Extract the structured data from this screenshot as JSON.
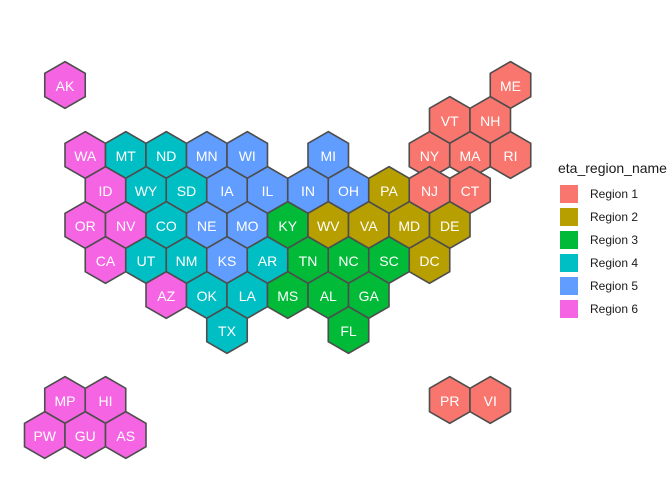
{
  "legend": {
    "title": "eta_region_name",
    "items": [
      {
        "label": "Region 1",
        "color": "#F8766D"
      },
      {
        "label": "Region 2",
        "color": "#B79F00"
      },
      {
        "label": "Region 3",
        "color": "#00BA38"
      },
      {
        "label": "Region 4",
        "color": "#00BFC4"
      },
      {
        "label": "Region 5",
        "color": "#619CFF"
      },
      {
        "label": "Region 6",
        "color": "#F564E3"
      }
    ]
  },
  "states": [
    {
      "abbr": "AK",
      "region": "Region 6",
      "row": 0,
      "col": 1
    },
    {
      "abbr": "ME",
      "region": "Region 1",
      "row": 0,
      "col": 12
    },
    {
      "abbr": "VT",
      "region": "Region 1",
      "row": 1,
      "col": 10.5
    },
    {
      "abbr": "NH",
      "region": "Region 1",
      "row": 1,
      "col": 11.5
    },
    {
      "abbr": "WA",
      "region": "Region 6",
      "row": 2,
      "col": 1.5
    },
    {
      "abbr": "MT",
      "region": "Region 4",
      "row": 2,
      "col": 2.5
    },
    {
      "abbr": "ND",
      "region": "Region 4",
      "row": 2,
      "col": 3.5
    },
    {
      "abbr": "MN",
      "region": "Region 5",
      "row": 2,
      "col": 4.5
    },
    {
      "abbr": "WI",
      "region": "Region 5",
      "row": 2,
      "col": 5.5
    },
    {
      "abbr": "MI",
      "region": "Region 5",
      "row": 2,
      "col": 7.5
    },
    {
      "abbr": "NY",
      "region": "Region 1",
      "row": 2,
      "col": 10
    },
    {
      "abbr": "MA",
      "region": "Region 1",
      "row": 2,
      "col": 11
    },
    {
      "abbr": "RI",
      "region": "Region 1",
      "row": 2,
      "col": 12
    },
    {
      "abbr": "ID",
      "region": "Region 6",
      "row": 3,
      "col": 2
    },
    {
      "abbr": "WY",
      "region": "Region 4",
      "row": 3,
      "col": 3
    },
    {
      "abbr": "SD",
      "region": "Region 4",
      "row": 3,
      "col": 4
    },
    {
      "abbr": "IA",
      "region": "Region 5",
      "row": 3,
      "col": 5
    },
    {
      "abbr": "IL",
      "region": "Region 5",
      "row": 3,
      "col": 6
    },
    {
      "abbr": "IN",
      "region": "Region 5",
      "row": 3,
      "col": 7
    },
    {
      "abbr": "OH",
      "region": "Region 5",
      "row": 3,
      "col": 8
    },
    {
      "abbr": "PA",
      "region": "Region 2",
      "row": 3,
      "col": 9
    },
    {
      "abbr": "NJ",
      "region": "Region 1",
      "row": 3,
      "col": 10
    },
    {
      "abbr": "CT",
      "region": "Region 1",
      "row": 3,
      "col": 11
    },
    {
      "abbr": "OR",
      "region": "Region 6",
      "row": 4,
      "col": 1.5
    },
    {
      "abbr": "NV",
      "region": "Region 6",
      "row": 4,
      "col": 2.5
    },
    {
      "abbr": "CO",
      "region": "Region 4",
      "row": 4,
      "col": 3.5
    },
    {
      "abbr": "NE",
      "region": "Region 5",
      "row": 4,
      "col": 4.5
    },
    {
      "abbr": "MO",
      "region": "Region 5",
      "row": 4,
      "col": 5.5
    },
    {
      "abbr": "KY",
      "region": "Region 3",
      "row": 4,
      "col": 6.5
    },
    {
      "abbr": "WV",
      "region": "Region 2",
      "row": 4,
      "col": 7.5
    },
    {
      "abbr": "VA",
      "region": "Region 2",
      "row": 4,
      "col": 8.5
    },
    {
      "abbr": "MD",
      "region": "Region 2",
      "row": 4,
      "col": 9.5
    },
    {
      "abbr": "DE",
      "region": "Region 2",
      "row": 4,
      "col": 10.5
    },
    {
      "abbr": "CA",
      "region": "Region 6",
      "row": 5,
      "col": 2
    },
    {
      "abbr": "UT",
      "region": "Region 4",
      "row": 5,
      "col": 3
    },
    {
      "abbr": "NM",
      "region": "Region 4",
      "row": 5,
      "col": 4
    },
    {
      "abbr": "KS",
      "region": "Region 5",
      "row": 5,
      "col": 5
    },
    {
      "abbr": "AR",
      "region": "Region 4",
      "row": 5,
      "col": 6
    },
    {
      "abbr": "TN",
      "region": "Region 3",
      "row": 5,
      "col": 7
    },
    {
      "abbr": "NC",
      "region": "Region 3",
      "row": 5,
      "col": 8
    },
    {
      "abbr": "SC",
      "region": "Region 3",
      "row": 5,
      "col": 9
    },
    {
      "abbr": "DC",
      "region": "Region 2",
      "row": 5,
      "col": 10
    },
    {
      "abbr": "AZ",
      "region": "Region 6",
      "row": 6,
      "col": 3.5
    },
    {
      "abbr": "OK",
      "region": "Region 4",
      "row": 6,
      "col": 4.5
    },
    {
      "abbr": "LA",
      "region": "Region 4",
      "row": 6,
      "col": 5.5
    },
    {
      "abbr": "MS",
      "region": "Region 3",
      "row": 6,
      "col": 6.5
    },
    {
      "abbr": "AL",
      "region": "Region 3",
      "row": 6,
      "col": 7.5
    },
    {
      "abbr": "GA",
      "region": "Region 3",
      "row": 6,
      "col": 8.5
    },
    {
      "abbr": "TX",
      "region": "Region 4",
      "row": 7,
      "col": 5
    },
    {
      "abbr": "FL",
      "region": "Region 3",
      "row": 7,
      "col": 8
    },
    {
      "abbr": "MP",
      "region": "Region 6",
      "row": 9,
      "col": 1
    },
    {
      "abbr": "HI",
      "region": "Region 6",
      "row": 9,
      "col": 2
    },
    {
      "abbr": "PR",
      "region": "Region 1",
      "row": 9,
      "col": 10.5
    },
    {
      "abbr": "VI",
      "region": "Region 1",
      "row": 9,
      "col": 11.5
    },
    {
      "abbr": "PW",
      "region": "Region 6",
      "row": 10,
      "col": 0.5
    },
    {
      "abbr": "GU",
      "region": "Region 6",
      "row": 10,
      "col": 1.5
    },
    {
      "abbr": "AS",
      "region": "Region 6",
      "row": 10,
      "col": 2.5
    }
  ]
}
